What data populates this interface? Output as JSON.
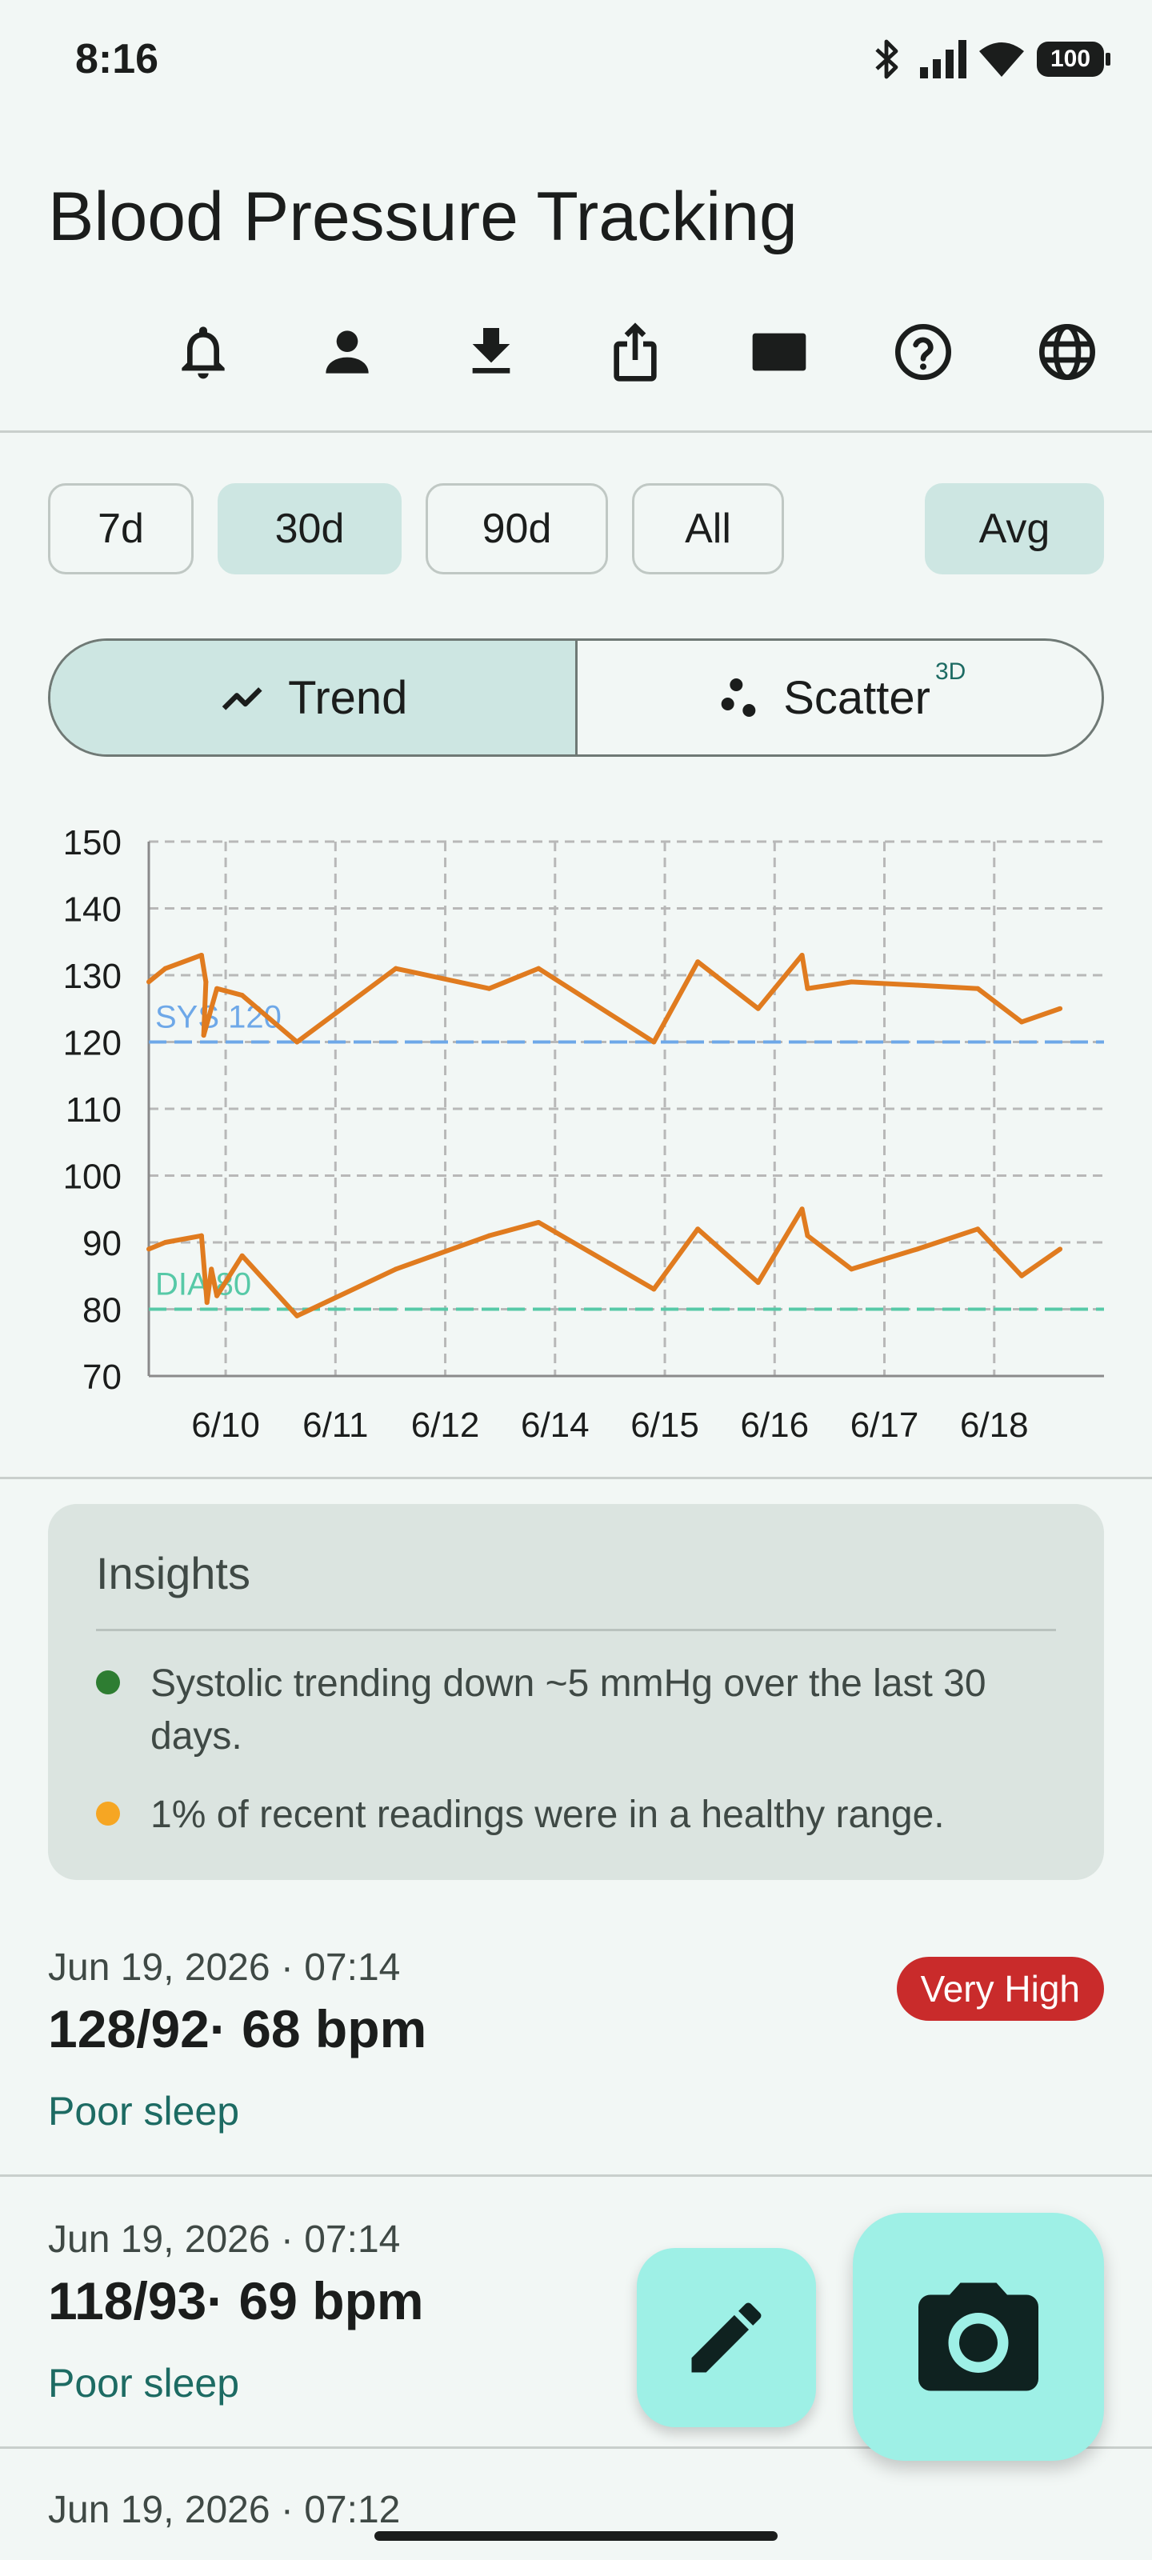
{
  "status_bar": {
    "time": "8:16",
    "battery": "100"
  },
  "page": {
    "title": "Blood Pressure Tracking"
  },
  "toolbar": {
    "icons": [
      "bell-icon",
      "person-icon",
      "download-icon",
      "share-icon",
      "monitor-heart-icon",
      "help-icon",
      "globe-icon"
    ]
  },
  "range_filter": {
    "options": [
      "7d",
      "30d",
      "90d",
      "All"
    ],
    "selected": "30d",
    "avg_label": "Avg",
    "avg_active": true
  },
  "view_toggle": {
    "trend_label": "Trend",
    "scatter_label": "Scatter",
    "scatter_badge": "3D",
    "selected": "Trend"
  },
  "chart_data": {
    "type": "line",
    "x_tick_labels": [
      "6/10",
      "6/11",
      "6/12",
      "6/14",
      "6/15",
      "6/16",
      "6/17",
      "6/18"
    ],
    "y_ticks": [
      70,
      80,
      90,
      100,
      110,
      120,
      130,
      140,
      150
    ],
    "ylim": [
      70,
      150
    ],
    "xlim": [
      0,
      8.7
    ],
    "grid": true,
    "reference_lines": [
      {
        "label": "SYS 120",
        "value": 120,
        "color": "#6ea8e8"
      },
      {
        "label": "DIA 80",
        "value": 80,
        "color": "#57c9a7"
      }
    ],
    "series": [
      {
        "color": "#e07b1f",
        "x": [
          0,
          0.15,
          0.48,
          0.52,
          0.5,
          0.62,
          0.85,
          1.35,
          2.25,
          3.1,
          3.55,
          4.6,
          5.0,
          5.55,
          5.95,
          6.0,
          6.4,
          7.0,
          7.55,
          7.95,
          8.3
        ],
        "values": [
          129,
          131,
          133,
          129,
          121,
          128,
          127,
          120,
          131,
          128,
          131,
          120,
          132,
          125,
          133,
          128,
          129,
          128.5,
          128,
          123,
          125
        ]
      },
      {
        "color": "#e07b1f",
        "x": [
          0,
          0.15,
          0.48,
          0.53,
          0.57,
          0.62,
          0.85,
          1.35,
          2.25,
          3.1,
          3.55,
          4.6,
          5.0,
          5.55,
          5.95,
          6.0,
          6.4,
          7.0,
          7.55,
          7.95,
          8.3
        ],
        "values": [
          89,
          90,
          91,
          81,
          86,
          82,
          88,
          79,
          86,
          91,
          93,
          83,
          92,
          84,
          95,
          91,
          86,
          89,
          92,
          85,
          89
        ]
      }
    ]
  },
  "insights": {
    "title": "Insights",
    "items": [
      {
        "text": "Systolic trending down ~5 mmHg over the last 30 days.",
        "color": "#2e7d32"
      },
      {
        "text": "1% of recent readings were in a healthy range.",
        "color": "#f6a623"
      }
    ]
  },
  "readings": [
    {
      "date": "Jun 19, 2026 · 07:14",
      "value": "128/92· 68 bpm",
      "note": "Poor sleep",
      "badge": "Very High"
    },
    {
      "date": "Jun 19, 2026 · 07:14",
      "value": "118/93· 69 bpm",
      "note": "Poor sleep",
      "badge": ""
    },
    {
      "date": "Jun 19, 2026 · 07:12",
      "value": "",
      "note": "",
      "badge": ""
    }
  ],
  "fabs": {
    "edit_icon": "edit-icon",
    "camera_icon": "camera-icon"
  }
}
